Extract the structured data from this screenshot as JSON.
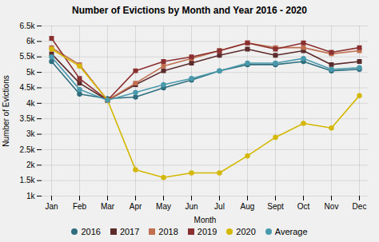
{
  "chart_data": {
    "type": "line",
    "title": "Number of Evictions by Month and Year 2016 - 2020",
    "xlabel": "Month",
    "ylabel": "Number of Evictions",
    "categories": [
      "Jan",
      "Feb",
      "Mar",
      "Apr",
      "May",
      "Jun",
      "Jul",
      "Aug",
      "Sept",
      "Oct",
      "Nov",
      "Dec"
    ],
    "series": [
      {
        "name": "2016",
        "color": "#2e6e7e",
        "marker": "circle",
        "values": [
          5350,
          4300,
          4150,
          4200,
          4500,
          4750,
          5050,
          5250,
          5250,
          5350,
          5050,
          5100
        ]
      },
      {
        "name": "2017",
        "color": "#5c2b2b",
        "marker": "square",
        "values": [
          5600,
          4650,
          4100,
          4600,
          5050,
          5300,
          5550,
          5750,
          5550,
          5700,
          5250,
          5350
        ]
      },
      {
        "name": "2018",
        "color": "#c07050",
        "marker": "square",
        "values": [
          5800,
          5250,
          4100,
          4650,
          5200,
          5450,
          5700,
          5950,
          5800,
          5800,
          5600,
          5700
        ]
      },
      {
        "name": "2019",
        "color": "#8b3030",
        "marker": "square",
        "values": [
          6100,
          4800,
          4100,
          5050,
          5350,
          5500,
          5700,
          5950,
          5750,
          5950,
          5650,
          5800
        ]
      },
      {
        "name": "2020",
        "color": "#d4b800",
        "marker": "circle",
        "values": [
          5750,
          5200,
          4100,
          1850,
          1600,
          1750,
          1750,
          2300,
          2900,
          3350,
          3200,
          4250
        ]
      },
      {
        "name": "Average",
        "color": "#4a9aad",
        "marker": "circle",
        "values": [
          5500,
          4450,
          4100,
          4350,
          4600,
          4800,
          5050,
          5300,
          5300,
          5450,
          5100,
          5150
        ]
      }
    ],
    "ylim": [
      1000,
      6500
    ],
    "yticks": [
      {
        "value": 1000,
        "label": "1k"
      },
      {
        "value": 1500,
        "label": "1.5k"
      },
      {
        "value": 2000,
        "label": "2k"
      },
      {
        "value": 2500,
        "label": "2.5k"
      },
      {
        "value": 3000,
        "label": "3k"
      },
      {
        "value": 3500,
        "label": "3.5k"
      },
      {
        "value": 4000,
        "label": "4k"
      },
      {
        "value": 4500,
        "label": "4.5k"
      },
      {
        "value": 5000,
        "label": "5k"
      },
      {
        "value": 5500,
        "label": "5.5k"
      },
      {
        "value": 6000,
        "label": "6k"
      },
      {
        "value": 6500,
        "label": "6.5k"
      }
    ],
    "grid": true,
    "legend": "bottom"
  }
}
